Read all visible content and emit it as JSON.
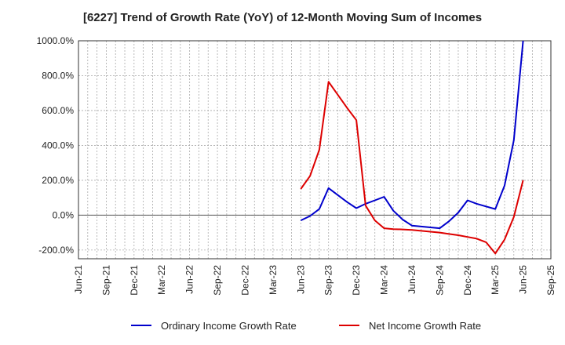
{
  "title": "[6227]  Trend of Growth Rate (YoY) of 12-Month Moving Sum of Incomes",
  "chart_data": {
    "type": "line",
    "ylim": [
      -250,
      1000
    ],
    "y_ticks": [
      -200,
      0,
      200,
      400,
      600,
      800,
      1000
    ],
    "y_tick_labels": [
      "-200.0%",
      "0.0%",
      "200.0%",
      "400.0%",
      "600.0%",
      "800.0%",
      "1000.0%"
    ],
    "x_ticks": [
      "Jun-21",
      "Sep-21",
      "Dec-21",
      "Mar-22",
      "Jun-22",
      "Sep-22",
      "Dec-22",
      "Mar-23",
      "Jun-23",
      "Sep-23",
      "Dec-23",
      "Mar-24",
      "Jun-24",
      "Sep-24",
      "Dec-24",
      "Mar-25",
      "Jun-25",
      "Sep-25"
    ],
    "grid": true,
    "legend_position": "bottom",
    "series": [
      {
        "name": "Ordinary Income Growth Rate",
        "color": "#0000cc",
        "x": [
          "Jun-23",
          "Jul-23",
          "Aug-23",
          "Sep-23",
          "Oct-23",
          "Nov-23",
          "Dec-23",
          "Jan-24",
          "Feb-24",
          "Mar-24",
          "Apr-24",
          "May-24",
          "Jun-24",
          "Jul-24",
          "Aug-24",
          "Sep-24",
          "Oct-24",
          "Nov-24",
          "Dec-24",
          "Jan-25",
          "Feb-25",
          "Mar-25",
          "Apr-25",
          "May-25",
          "Jun-25"
        ],
        "values": [
          -30,
          -5,
          35,
          155,
          115,
          75,
          40,
          65,
          85,
          105,
          25,
          -25,
          -60,
          -65,
          -70,
          -75,
          -35,
          15,
          85,
          65,
          50,
          35,
          170,
          430,
          1000
        ]
      },
      {
        "name": "Net Income Growth Rate",
        "color": "#dd0000",
        "x": [
          "Jun-23",
          "Jul-23",
          "Aug-23",
          "Sep-23",
          "Oct-23",
          "Nov-23",
          "Dec-23",
          "Jan-24",
          "Feb-24",
          "Mar-24",
          "Apr-24",
          "May-24",
          "Jun-24",
          "Jul-24",
          "Aug-24",
          "Sep-24",
          "Oct-24",
          "Nov-24",
          "Dec-24",
          "Jan-25",
          "Feb-25",
          "Mar-25",
          "Apr-25",
          "May-25",
          "Jun-25"
        ],
        "values": [
          150,
          225,
          375,
          765,
          690,
          615,
          545,
          55,
          -30,
          -75,
          -80,
          -82,
          -85,
          -90,
          -95,
          -100,
          -108,
          -115,
          -125,
          -135,
          -155,
          -220,
          -140,
          -10,
          200
        ]
      }
    ]
  }
}
